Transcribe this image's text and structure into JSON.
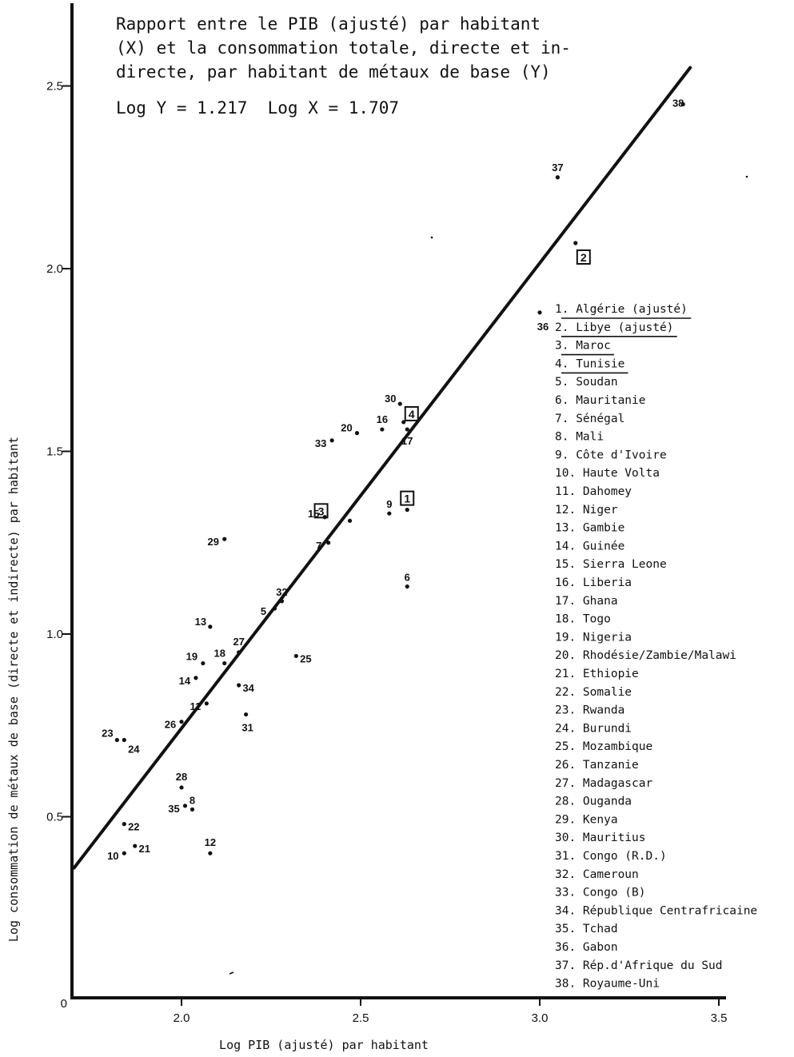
{
  "chart_data": {
    "type": "scatter",
    "title_lines": [
      "Rapport entre le PIB (ajusté) par habitant",
      "(X) et la consommation totale, directe et in-",
      "directe, par habitant de métaux de base (Y)"
    ],
    "formula": "Log Y = 1.217  Log X = 1.707",
    "xlabel": "Log PIB (ajusté) par habitant",
    "ylabel": "Log consommation de métaux de base (directe et indirecte) par habitant",
    "xlim": [
      1.7,
      3.55
    ],
    "ylim": [
      0,
      2.75
    ],
    "x_ticks": [
      {
        "v": 2.0,
        "label": "2.0"
      },
      {
        "v": 2.5,
        "label": "2.5"
      },
      {
        "v": 3.0,
        "label": "3.0"
      },
      {
        "v": 3.5,
        "label": "3.5"
      }
    ],
    "y_ticks": [
      {
        "v": 0,
        "label": "0"
      },
      {
        "v": 0.5,
        "label": "0.5"
      },
      {
        "v": 1.0,
        "label": "1.0"
      },
      {
        "v": 1.5,
        "label": "1.5"
      },
      {
        "v": 2.0,
        "label": "2.0"
      },
      {
        "v": 2.5,
        "label": "2.5"
      }
    ],
    "regression_line": {
      "x": [
        1.7,
        3.42
      ],
      "y": [
        0.36,
        2.55
      ]
    },
    "points": [
      {
        "id": "1",
        "x": 2.63,
        "y": 1.34,
        "boxed": true
      },
      {
        "id": "2",
        "x": 3.1,
        "y": 2.07,
        "boxed": true
      },
      {
        "id": "3",
        "x": 2.47,
        "y": 1.31,
        "boxed": true
      },
      {
        "id": "4",
        "x": 2.62,
        "y": 1.58,
        "boxed": true
      },
      {
        "id": "5",
        "x": 2.26,
        "y": 1.07
      },
      {
        "id": "6",
        "x": 2.63,
        "y": 1.13
      },
      {
        "id": "7",
        "x": 2.41,
        "y": 1.25
      },
      {
        "id": "8",
        "x": 2.03,
        "y": 0.52
      },
      {
        "id": "9",
        "x": 2.58,
        "y": 1.33
      },
      {
        "id": "10",
        "x": 1.84,
        "y": 0.4
      },
      {
        "id": "11",
        "x": 2.07,
        "y": 0.81
      },
      {
        "id": "12",
        "x": 2.08,
        "y": 0.4
      },
      {
        "id": "13",
        "x": 2.08,
        "y": 1.02
      },
      {
        "id": "14",
        "x": 2.04,
        "y": 0.88
      },
      {
        "id": "15",
        "x": 2.4,
        "y": 1.32
      },
      {
        "id": "16",
        "x": 2.56,
        "y": 1.56
      },
      {
        "id": "17",
        "x": 2.63,
        "y": 1.56
      },
      {
        "id": "18",
        "x": 2.12,
        "y": 0.92
      },
      {
        "id": "19",
        "x": 2.06,
        "y": 0.92
      },
      {
        "id": "20",
        "x": 2.49,
        "y": 1.55
      },
      {
        "id": "21",
        "x": 1.87,
        "y": 0.42
      },
      {
        "id": "22",
        "x": 1.84,
        "y": 0.48
      },
      {
        "id": "23",
        "x": 1.82,
        "y": 0.71
      },
      {
        "id": "24",
        "x": 1.84,
        "y": 0.71
      },
      {
        "id": "25",
        "x": 2.32,
        "y": 0.94
      },
      {
        "id": "26",
        "x": 2.0,
        "y": 0.76
      },
      {
        "id": "27",
        "x": 2.16,
        "y": 0.95
      },
      {
        "id": "28",
        "x": 2.0,
        "y": 0.58
      },
      {
        "id": "29",
        "x": 2.12,
        "y": 1.26
      },
      {
        "id": "30",
        "x": 2.61,
        "y": 1.63
      },
      {
        "id": "31",
        "x": 2.18,
        "y": 0.78
      },
      {
        "id": "32",
        "x": 2.28,
        "y": 1.09
      },
      {
        "id": "33",
        "x": 2.42,
        "y": 1.53
      },
      {
        "id": "34",
        "x": 2.16,
        "y": 0.86
      },
      {
        "id": "35",
        "x": 2.01,
        "y": 0.53
      },
      {
        "id": "36",
        "x": 3.0,
        "y": 1.88
      },
      {
        "id": "37",
        "x": 3.05,
        "y": 2.25
      },
      {
        "id": "38",
        "x": 3.4,
        "y": 2.45
      }
    ],
    "legend": [
      {
        "label": "1. Algérie (ajusté)",
        "underlined": true
      },
      {
        "label": "2. Libye (ajusté)",
        "underlined": true
      },
      {
        "label": "3. Maroc",
        "underlined": true
      },
      {
        "label": "4. Tunisie",
        "underlined": true
      },
      {
        "label": "5. Soudan"
      },
      {
        "label": "6. Mauritanie"
      },
      {
        "label": "7. Sénégal"
      },
      {
        "label": "8. Mali"
      },
      {
        "label": "9. Côte d'Ivoire"
      },
      {
        "label": "10. Haute Volta"
      },
      {
        "label": "11. Dahomey"
      },
      {
        "label": "12. Niger"
      },
      {
        "label": "13. Gambie"
      },
      {
        "label": "14. Guinée"
      },
      {
        "label": "15. Sierra Leone"
      },
      {
        "label": "16. Liberia"
      },
      {
        "label": "17. Ghana"
      },
      {
        "label": "18. Togo"
      },
      {
        "label": "19. Nigeria"
      },
      {
        "label": "20. Rhodésie/Zambie/Malawi"
      },
      {
        "label": "21. Ethiopie"
      },
      {
        "label": "22. Somalie"
      },
      {
        "label": "23. Rwanda"
      },
      {
        "label": "24. Burundi"
      },
      {
        "label": "25. Mozambique"
      },
      {
        "label": "26. Tanzanie"
      },
      {
        "label": "27. Madagascar"
      },
      {
        "label": "28. Ouganda"
      },
      {
        "label": "29. Kenya"
      },
      {
        "label": "30. Mauritius"
      },
      {
        "label": "31. Congo (R.D.)"
      },
      {
        "label": "32. Cameroun"
      },
      {
        "label": "33. Congo (B)"
      },
      {
        "label": "34. République Centrafricaine"
      },
      {
        "label": "35. Tchad"
      },
      {
        "label": "36. Gabon"
      },
      {
        "label": "37. Rép.d'Afrique du Sud"
      },
      {
        "label": "38. Royaume-Uni"
      }
    ]
  }
}
